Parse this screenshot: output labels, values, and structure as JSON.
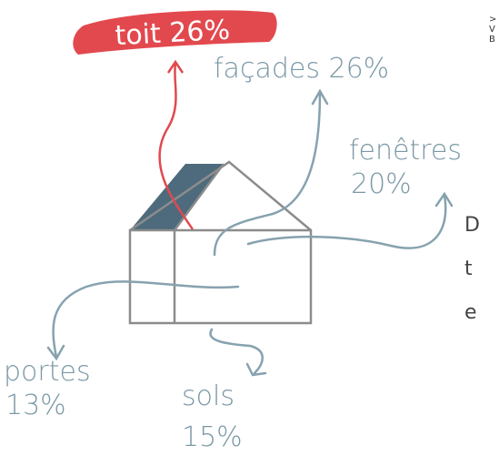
{
  "items": [
    {
      "name": "toit",
      "value": "26%"
    },
    {
      "name": "façades",
      "value": "26%"
    },
    {
      "name": "fenêtres",
      "value": "20%"
    },
    {
      "name": "portes",
      "value": "13%"
    },
    {
      "name": "sols",
      "value": "15%"
    }
  ],
  "side_note": [
    ">",
    "V",
    "B"
  ],
  "body_fragment": [
    "D",
    "t",
    "e"
  ]
}
